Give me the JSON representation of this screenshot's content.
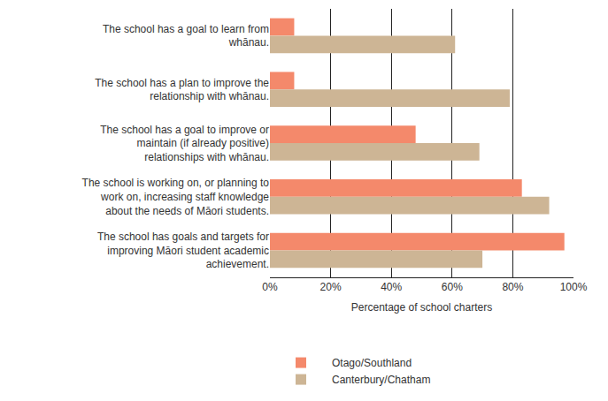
{
  "chart_data": {
    "type": "bar",
    "orientation": "horizontal",
    "categories": [
      "The school has a goal to learn from whānau.",
      "The school has a plan to improve the relationship with whānau.",
      "The school has a goal to improve or maintain (if already positive) relationships with whānau.",
      "The school is working on, or planning to work on, increasing staff knowledge about the needs of Māori students.",
      "The school has goals and targets for improving Māori student academic achievement."
    ],
    "series": [
      {
        "name": "Otago/Southland",
        "color": "#f4896b",
        "values": [
          8,
          8,
          48,
          83,
          97
        ]
      },
      {
        "name": "Canterbury/Chatham",
        "color": "#cdb595",
        "values": [
          61,
          79,
          69,
          92,
          70
        ]
      }
    ],
    "x_label": "Percentage of school charters",
    "xlim": [
      0,
      100
    ],
    "xticks": [
      {
        "value": 0,
        "label": "0%"
      },
      {
        "value": 20,
        "label": "20%"
      },
      {
        "value": 40,
        "label": "40%"
      },
      {
        "value": 60,
        "label": "60%"
      },
      {
        "value": 80,
        "label": "80%"
      },
      {
        "value": 100,
        "label": "100%"
      }
    ],
    "grid": true,
    "legend": "bottom"
  }
}
